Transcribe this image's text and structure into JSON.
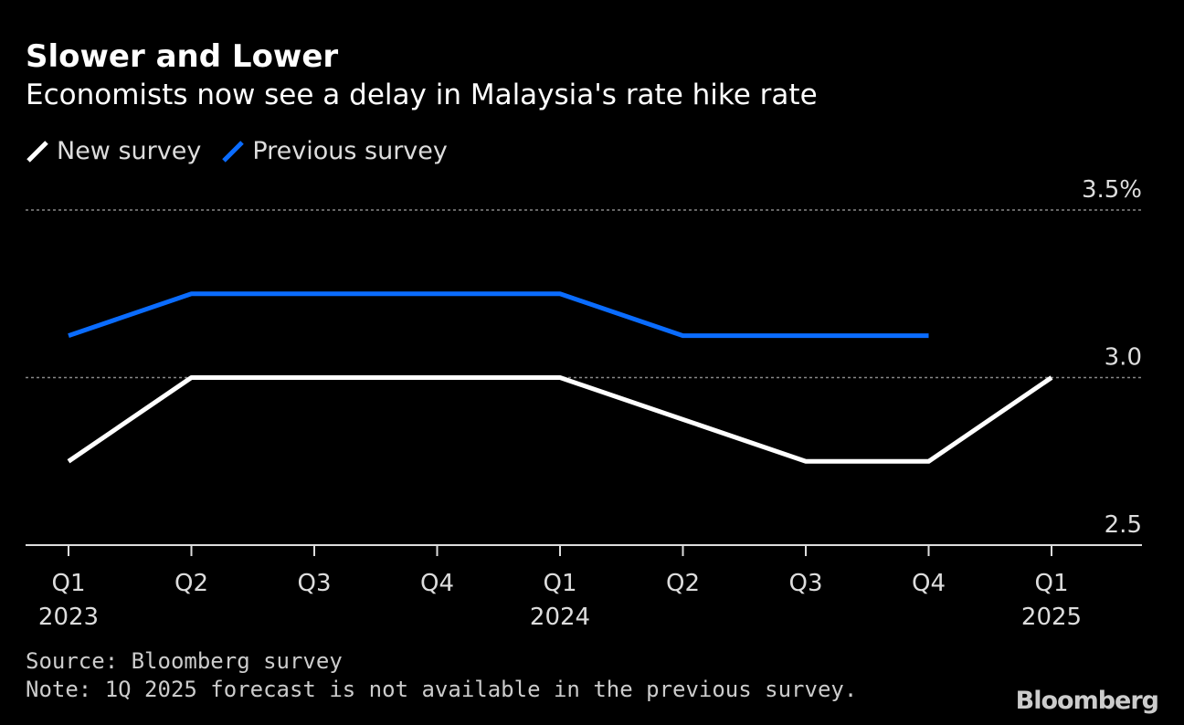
{
  "header": {
    "title": "Slower and Lower",
    "subtitle": "Economists now see a delay in Malaysia's rate hike rate"
  },
  "footer": {
    "source": "Source: Bloomberg survey",
    "note": "Note: 1Q 2025 forecast is not available in the previous survey.",
    "logo": "Bloomberg"
  },
  "chart_data": {
    "type": "line",
    "title": "Slower and Lower",
    "subtitle": "Economists now see a delay in Malaysia's rate hike rate",
    "categories": [
      "Q1 2023",
      "Q2 2023",
      "Q3 2023",
      "Q4 2023",
      "Q1 2024",
      "Q2 2024",
      "Q3 2024",
      "Q4 2024",
      "Q1 2025"
    ],
    "x_tick_labels": [
      [
        "Q1",
        "2023"
      ],
      [
        "Q2",
        ""
      ],
      [
        "Q3",
        ""
      ],
      [
        "Q4",
        ""
      ],
      [
        "Q1",
        "2024"
      ],
      [
        "Q2",
        ""
      ],
      [
        "Q3",
        ""
      ],
      [
        "Q4",
        ""
      ],
      [
        "Q1",
        "2025"
      ]
    ],
    "series": [
      {
        "name": "New survey",
        "color": "#ffffff",
        "values": [
          2.75,
          3.0,
          3.0,
          3.0,
          3.0,
          2.875,
          2.75,
          2.75,
          3.0
        ]
      },
      {
        "name": "Previous survey",
        "color": "#0a6cff",
        "values": [
          3.125,
          3.25,
          3.25,
          3.25,
          3.25,
          3.125,
          3.125,
          3.125,
          null
        ]
      }
    ],
    "ylim": [
      2.5,
      3.5
    ],
    "y_ticks": [
      {
        "value": 3.5,
        "label": "3.5%"
      },
      {
        "value": 3.0,
        "label": "3.0"
      },
      {
        "value": 2.5,
        "label": "2.5"
      }
    ],
    "grid": "dotted horizontal",
    "legend": "top-left"
  }
}
